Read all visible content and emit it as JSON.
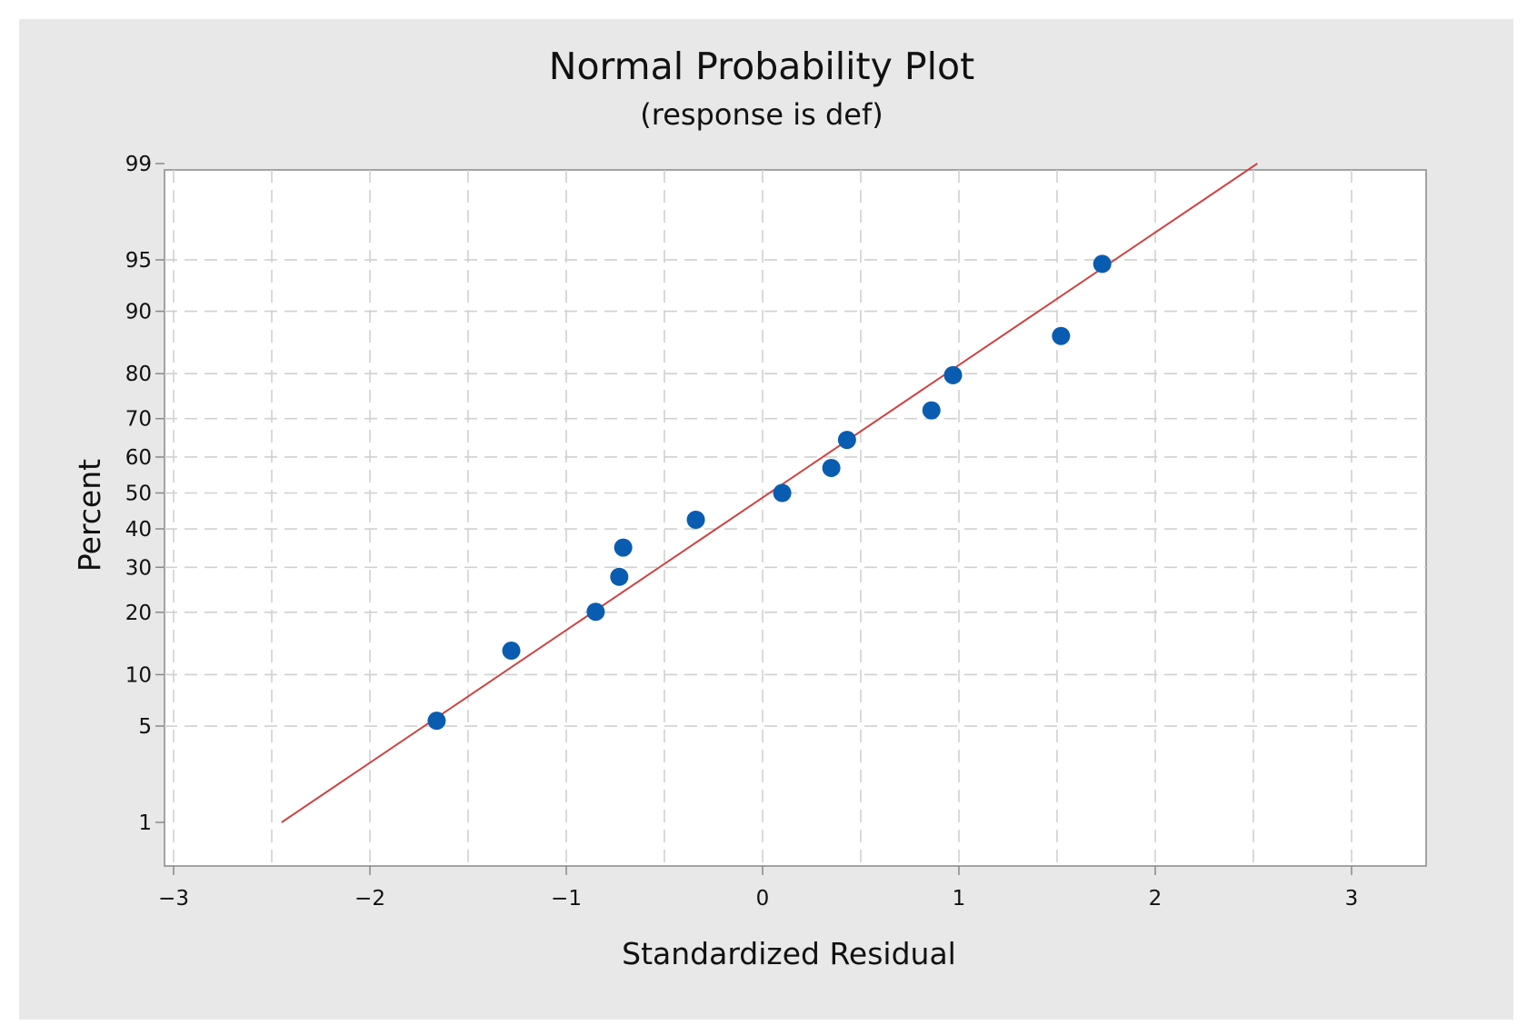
{
  "chart_data": {
    "type": "scatter",
    "title": "Normal Probability Plot",
    "subtitle": "(response is def)",
    "xlabel": "Standardized Residual",
    "ylabel": "Percent",
    "xlim": [
      -3,
      3
    ],
    "ylim": [
      1,
      99
    ],
    "yscale": "normal-probability",
    "x_ticks": [
      -3,
      -2,
      -1,
      0,
      1,
      2,
      3
    ],
    "x_tick_labels": [
      "−3",
      "−2",
      "−1",
      "0",
      "1",
      "2",
      "3"
    ],
    "y_ticks": [
      1,
      5,
      10,
      20,
      30,
      40,
      50,
      60,
      70,
      80,
      90,
      95,
      99
    ],
    "grid": true,
    "legend": "none",
    "series": [
      {
        "x": [
          -1.66,
          -1.28,
          -0.85,
          -0.73,
          -0.71,
          -0.34,
          0.1,
          0.35,
          0.43,
          0.86,
          0.97,
          1.52,
          1.73
        ],
        "y": [
          5.4,
          13.3,
          20.1,
          27.7,
          35.0,
          42.5,
          50.0,
          57.0,
          64.6,
          72.0,
          79.7,
          86.6,
          94.7
        ],
        "color": "#0a5cb0"
      }
    ],
    "fit_line": {
      "x": [
        -2.45,
        2.52
      ],
      "y": [
        1.0,
        99.0
      ],
      "color": "#cc4444"
    }
  },
  "colors": {
    "frame_bg": "#e8e8e8",
    "plot_bg": "#ffffff",
    "grid": "#d0d0d0",
    "axis": "#888888"
  }
}
